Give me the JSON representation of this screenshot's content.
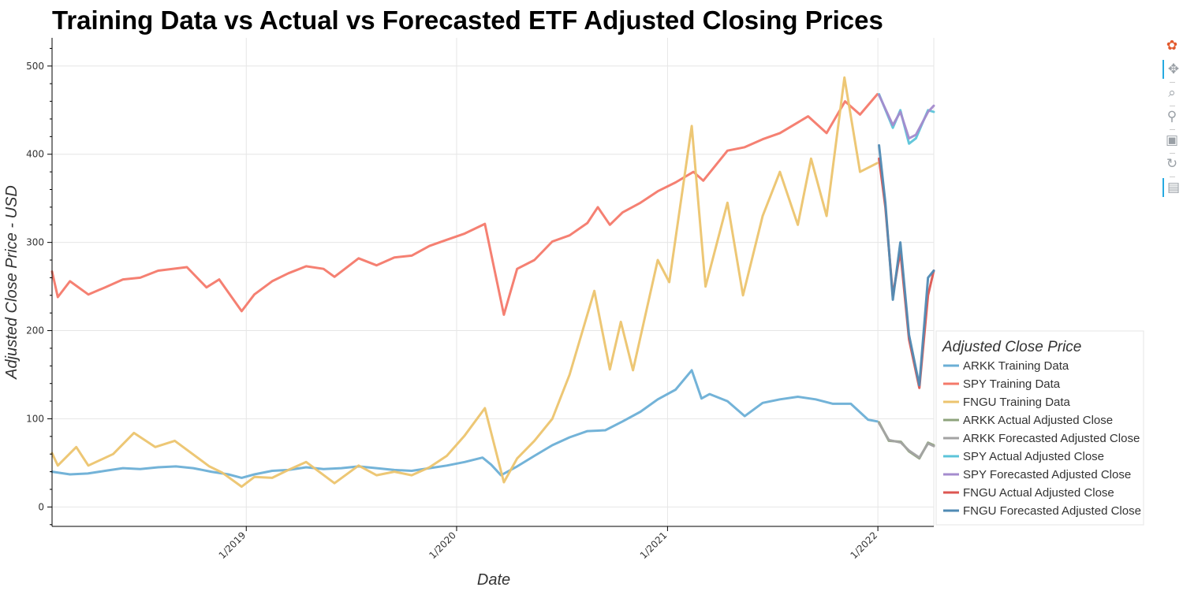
{
  "chart_data": {
    "type": "line",
    "title": "Training Data vs Actual vs Forecasted ETF Adjusted Closing Prices",
    "xlabel": "Date",
    "ylabel": "Adjusted Close Price - USD",
    "x_range": [
      "2018-01-29",
      "2022-04-08"
    ],
    "ylim": [
      -22,
      532
    ],
    "x_ticks": [
      {
        "date": "2019-01-01",
        "label": "1/2019"
      },
      {
        "date": "2020-01-01",
        "label": "1/2020"
      },
      {
        "date": "2021-01-01",
        "label": "1/2021"
      },
      {
        "date": "2022-01-01",
        "label": "1/2022"
      }
    ],
    "y_ticks": [
      0,
      100,
      200,
      300,
      400,
      500
    ],
    "grid": true,
    "legend": {
      "title": "Adjusted Close Price",
      "position": "right"
    },
    "series": [
      {
        "name": "ARKK Training Data",
        "color": "#6bafd6",
        "points": [
          [
            "2018-01-29",
            40
          ],
          [
            "2018-03-01",
            37
          ],
          [
            "2018-04-01",
            38
          ],
          [
            "2018-05-01",
            41
          ],
          [
            "2018-06-01",
            44
          ],
          [
            "2018-07-01",
            43
          ],
          [
            "2018-08-01",
            45
          ],
          [
            "2018-09-01",
            46
          ],
          [
            "2018-10-01",
            44
          ],
          [
            "2018-11-01",
            40
          ],
          [
            "2018-12-01",
            37
          ],
          [
            "2018-12-24",
            33
          ],
          [
            "2019-01-15",
            37
          ],
          [
            "2019-02-15",
            41
          ],
          [
            "2019-03-15",
            42
          ],
          [
            "2019-04-15",
            45
          ],
          [
            "2019-05-15",
            43
          ],
          [
            "2019-06-15",
            44
          ],
          [
            "2019-07-15",
            46
          ],
          [
            "2019-08-15",
            44
          ],
          [
            "2019-09-15",
            42
          ],
          [
            "2019-10-15",
            41
          ],
          [
            "2019-11-15",
            44
          ],
          [
            "2019-12-15",
            47
          ],
          [
            "2020-01-15",
            51
          ],
          [
            "2020-02-15",
            56
          ],
          [
            "2020-03-01",
            48
          ],
          [
            "2020-03-18",
            36
          ],
          [
            "2020-04-15",
            46
          ],
          [
            "2020-05-15",
            58
          ],
          [
            "2020-06-15",
            70
          ],
          [
            "2020-07-15",
            79
          ],
          [
            "2020-08-15",
            86
          ],
          [
            "2020-09-15",
            87
          ],
          [
            "2020-10-15",
            97
          ],
          [
            "2020-11-15",
            108
          ],
          [
            "2020-12-15",
            122
          ],
          [
            "2021-01-15",
            133
          ],
          [
            "2021-02-12",
            155
          ],
          [
            "2021-03-01",
            123
          ],
          [
            "2021-03-15",
            128
          ],
          [
            "2021-04-15",
            120
          ],
          [
            "2021-05-15",
            103
          ],
          [
            "2021-06-15",
            118
          ],
          [
            "2021-07-15",
            122
          ],
          [
            "2021-08-15",
            125
          ],
          [
            "2021-09-15",
            122
          ],
          [
            "2021-10-15",
            117
          ],
          [
            "2021-11-15",
            117
          ],
          [
            "2021-12-15",
            99
          ],
          [
            "2021-12-31",
            97
          ]
        ]
      },
      {
        "name": "SPY Training Data",
        "color": "#f4796a",
        "points": [
          [
            "2018-01-29",
            267
          ],
          [
            "2018-02-08",
            238
          ],
          [
            "2018-03-01",
            256
          ],
          [
            "2018-04-02",
            241
          ],
          [
            "2018-05-01",
            249
          ],
          [
            "2018-06-01",
            258
          ],
          [
            "2018-07-01",
            260
          ],
          [
            "2018-08-01",
            268
          ],
          [
            "2018-09-20",
            272
          ],
          [
            "2018-10-24",
            249
          ],
          [
            "2018-11-15",
            258
          ],
          [
            "2018-12-24",
            222
          ],
          [
            "2019-01-15",
            241
          ],
          [
            "2019-02-15",
            256
          ],
          [
            "2019-03-15",
            265
          ],
          [
            "2019-04-15",
            273
          ],
          [
            "2019-05-15",
            270
          ],
          [
            "2019-06-03",
            261
          ],
          [
            "2019-07-15",
            282
          ],
          [
            "2019-08-15",
            274
          ],
          [
            "2019-09-15",
            283
          ],
          [
            "2019-10-15",
            285
          ],
          [
            "2019-11-15",
            296
          ],
          [
            "2019-12-15",
            303
          ],
          [
            "2020-01-15",
            310
          ],
          [
            "2020-02-19",
            321
          ],
          [
            "2020-03-23",
            218
          ],
          [
            "2020-04-15",
            270
          ],
          [
            "2020-05-15",
            280
          ],
          [
            "2020-06-15",
            301
          ],
          [
            "2020-07-15",
            308
          ],
          [
            "2020-08-15",
            322
          ],
          [
            "2020-09-02",
            340
          ],
          [
            "2020-09-23",
            320
          ],
          [
            "2020-10-15",
            334
          ],
          [
            "2020-11-15",
            345
          ],
          [
            "2020-12-15",
            358
          ],
          [
            "2021-01-15",
            368
          ],
          [
            "2021-02-15",
            380
          ],
          [
            "2021-03-04",
            370
          ],
          [
            "2021-04-15",
            404
          ],
          [
            "2021-05-15",
            408
          ],
          [
            "2021-06-15",
            417
          ],
          [
            "2021-07-15",
            424
          ],
          [
            "2021-08-15",
            436
          ],
          [
            "2021-09-02",
            443
          ],
          [
            "2021-10-04",
            424
          ],
          [
            "2021-11-05",
            460
          ],
          [
            "2021-12-01",
            445
          ],
          [
            "2021-12-31",
            468
          ]
        ]
      },
      {
        "name": "FNGU Training Data",
        "color": "#ecc46e",
        "points": [
          [
            "2018-01-29",
            61
          ],
          [
            "2018-02-08",
            47
          ],
          [
            "2018-03-12",
            68
          ],
          [
            "2018-04-02",
            47
          ],
          [
            "2018-05-15",
            60
          ],
          [
            "2018-06-20",
            84
          ],
          [
            "2018-07-27",
            68
          ],
          [
            "2018-08-30",
            75
          ],
          [
            "2018-10-29",
            46
          ],
          [
            "2018-11-20",
            39
          ],
          [
            "2018-12-24",
            23
          ],
          [
            "2019-01-15",
            34
          ],
          [
            "2019-02-15",
            33
          ],
          [
            "2019-03-15",
            42
          ],
          [
            "2019-04-15",
            51
          ],
          [
            "2019-06-03",
            27
          ],
          [
            "2019-07-15",
            47
          ],
          [
            "2019-08-15",
            36
          ],
          [
            "2019-09-15",
            40
          ],
          [
            "2019-10-15",
            36
          ],
          [
            "2019-11-15",
            45
          ],
          [
            "2019-12-15",
            58
          ],
          [
            "2020-01-15",
            81
          ],
          [
            "2020-02-19",
            112
          ],
          [
            "2020-03-23",
            28
          ],
          [
            "2020-04-15",
            55
          ],
          [
            "2020-05-15",
            75
          ],
          [
            "2020-06-15",
            100
          ],
          [
            "2020-07-15",
            150
          ],
          [
            "2020-08-27",
            245
          ],
          [
            "2020-09-23",
            156
          ],
          [
            "2020-10-12",
            210
          ],
          [
            "2020-11-02",
            155
          ],
          [
            "2020-12-15",
            280
          ],
          [
            "2021-01-04",
            255
          ],
          [
            "2021-02-12",
            432
          ],
          [
            "2021-03-08",
            250
          ],
          [
            "2021-04-15",
            345
          ],
          [
            "2021-05-12",
            240
          ],
          [
            "2021-06-15",
            330
          ],
          [
            "2021-07-15",
            380
          ],
          [
            "2021-08-15",
            320
          ],
          [
            "2021-09-07",
            395
          ],
          [
            "2021-10-04",
            330
          ],
          [
            "2021-11-04",
            487
          ],
          [
            "2021-12-01",
            380
          ],
          [
            "2021-12-31",
            390
          ]
        ]
      },
      {
        "name": "ARKK Actual Adjusted Close",
        "color": "#8ea37c",
        "points": [
          [
            "2022-01-03",
            96
          ],
          [
            "2022-01-20",
            75
          ],
          [
            "2022-02-10",
            74
          ],
          [
            "2022-02-24",
            63
          ],
          [
            "2022-03-14",
            55
          ],
          [
            "2022-03-29",
            73
          ],
          [
            "2022-04-08",
            70
          ]
        ]
      },
      {
        "name": "ARKK Forecasted Adjusted Close",
        "color": "#a3a3a3",
        "points": [
          [
            "2022-01-03",
            95
          ],
          [
            "2022-01-20",
            76
          ],
          [
            "2022-02-10",
            73
          ],
          [
            "2022-02-24",
            64
          ],
          [
            "2022-03-14",
            56
          ],
          [
            "2022-03-29",
            72
          ],
          [
            "2022-04-08",
            69
          ]
        ]
      },
      {
        "name": "SPY Actual Adjusted Close",
        "color": "#5cc4d9",
        "points": [
          [
            "2022-01-03",
            468
          ],
          [
            "2022-01-27",
            430
          ],
          [
            "2022-02-09",
            450
          ],
          [
            "2022-02-24",
            412
          ],
          [
            "2022-03-08",
            418
          ],
          [
            "2022-03-29",
            450
          ],
          [
            "2022-04-08",
            448
          ]
        ]
      },
      {
        "name": "SPY Forecasted Adjusted Close",
        "color": "#a48bce",
        "points": [
          [
            "2022-01-03",
            467
          ],
          [
            "2022-01-27",
            433
          ],
          [
            "2022-02-09",
            448
          ],
          [
            "2022-02-24",
            418
          ],
          [
            "2022-03-08",
            422
          ],
          [
            "2022-03-29",
            448
          ],
          [
            "2022-04-08",
            455
          ]
        ]
      },
      {
        "name": "FNGU Actual Adjusted Close",
        "color": "#dd5651",
        "points": [
          [
            "2022-01-03",
            395
          ],
          [
            "2022-01-14",
            340
          ],
          [
            "2022-01-27",
            240
          ],
          [
            "2022-02-09",
            290
          ],
          [
            "2022-02-24",
            190
          ],
          [
            "2022-03-14",
            135
          ],
          [
            "2022-03-29",
            240
          ],
          [
            "2022-04-08",
            268
          ]
        ]
      },
      {
        "name": "FNGU Forecasted Adjusted Close",
        "color": "#4f8ab4",
        "points": [
          [
            "2022-01-03",
            410
          ],
          [
            "2022-01-14",
            345
          ],
          [
            "2022-01-27",
            235
          ],
          [
            "2022-02-09",
            300
          ],
          [
            "2022-02-24",
            195
          ],
          [
            "2022-03-14",
            138
          ],
          [
            "2022-03-29",
            260
          ],
          [
            "2022-04-08",
            268
          ]
        ]
      }
    ]
  },
  "toolbar": {
    "tools": [
      {
        "icon": "bokeh-logo-icon",
        "glyph": "✿",
        "color": "#e25a2e",
        "active": false
      },
      {
        "icon": "pan-icon",
        "glyph": "✥",
        "color": "#9aa0a6",
        "active": true
      },
      {
        "icon": "box-zoom-icon",
        "glyph": "⌕",
        "color": "#9aa0a6",
        "active": false
      },
      {
        "icon": "wheel-zoom-icon",
        "glyph": "⚲",
        "color": "#9aa0a6",
        "active": false
      },
      {
        "icon": "save-icon",
        "glyph": "▣",
        "color": "#9aa0a6",
        "active": false
      },
      {
        "icon": "reset-icon",
        "glyph": "↻",
        "color": "#9aa0a6",
        "active": false
      },
      {
        "icon": "hover-icon",
        "glyph": "▤",
        "color": "#9aa0a6",
        "active": true
      }
    ]
  }
}
